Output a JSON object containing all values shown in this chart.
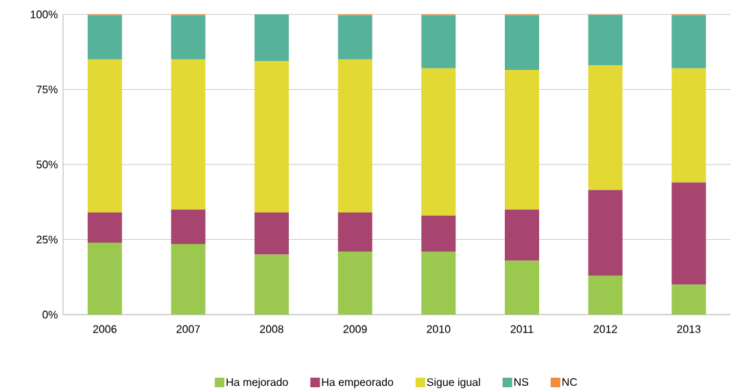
{
  "chart_data": {
    "type": "bar",
    "stacked": true,
    "categories": [
      "2006",
      "2007",
      "2008",
      "2009",
      "2010",
      "2011",
      "2012",
      "2013"
    ],
    "series": [
      {
        "name": "Ha mejorado",
        "color": "#9bc84f",
        "values": [
          24,
          23.5,
          20,
          21,
          21,
          18,
          13,
          10
        ]
      },
      {
        "name": "Ha empeorado",
        "color": "#a7446f",
        "values": [
          10,
          11.5,
          14,
          13,
          12,
          17,
          28.5,
          34
        ]
      },
      {
        "name": "Sigue igual",
        "color": "#e3d935",
        "values": [
          51,
          50,
          50.5,
          51,
          49,
          46.5,
          41.5,
          38
        ]
      },
      {
        "name": "NS",
        "color": "#56b39a",
        "values": [
          14.7,
          14.7,
          15.5,
          14.7,
          17.7,
          18.2,
          16.8,
          17.7
        ]
      },
      {
        "name": "NC",
        "color": "#f08c3a",
        "values": [
          0.3,
          0.3,
          0,
          0.3,
          0.3,
          0.3,
          0.2,
          0.3
        ]
      }
    ],
    "ylim": [
      0,
      100
    ],
    "yticks": [
      {
        "value": 0,
        "label": "0%"
      },
      {
        "value": 25,
        "label": "25%"
      },
      {
        "value": 50,
        "label": "50%"
      },
      {
        "value": 75,
        "label": "75%"
      },
      {
        "value": 100,
        "label": "100%"
      }
    ],
    "grid": "y",
    "legend": "bottom"
  }
}
